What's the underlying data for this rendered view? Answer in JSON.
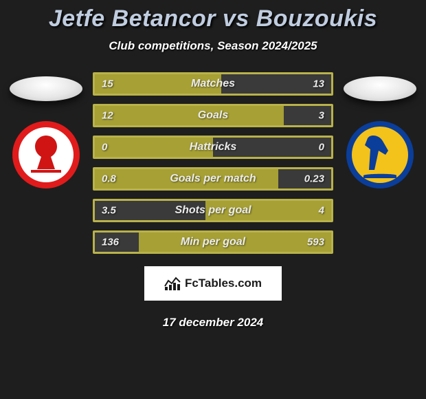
{
  "title": "Jetfe Betancor vs Bouzoukis",
  "subtitle": "Club competitions, Season 2024/2025",
  "date": "17 december 2024",
  "brand": "FcTables.com",
  "colors": {
    "olive": "#a6a035",
    "olive_border": "#b9b24a",
    "gray_bg": "#3a3a3a",
    "text_white": "#ececec",
    "text_dark": "#2b2b10",
    "label": "#ececec"
  },
  "club_left": {
    "ring": "#e11b1b",
    "inner": "#ffffff",
    "accent": "#d01414"
  },
  "club_right": {
    "ring": "#0a3e9a",
    "inner": "#f3c21b",
    "accent": "#0a3e9a"
  },
  "bars": [
    {
      "label": "Matches",
      "left": "15",
      "right": "13",
      "left_pct": 53.6,
      "right_pct": 46.4
    },
    {
      "label": "Goals",
      "left": "12",
      "right": "3",
      "left_pct": 80.0,
      "right_pct": 20.0
    },
    {
      "label": "Hattricks",
      "left": "0",
      "right": "0",
      "left_pct": 50.0,
      "right_pct": 50.0
    },
    {
      "label": "Goals per match",
      "left": "0.8",
      "right": "0.23",
      "left_pct": 77.7,
      "right_pct": 22.3
    },
    {
      "label": "Shots per goal",
      "left": "3.5",
      "right": "4",
      "left_pct": 46.7,
      "right_pct": 53.3
    },
    {
      "label": "Min per goal",
      "left": "136",
      "right": "593",
      "left_pct": 18.7,
      "right_pct": 81.3
    }
  ]
}
